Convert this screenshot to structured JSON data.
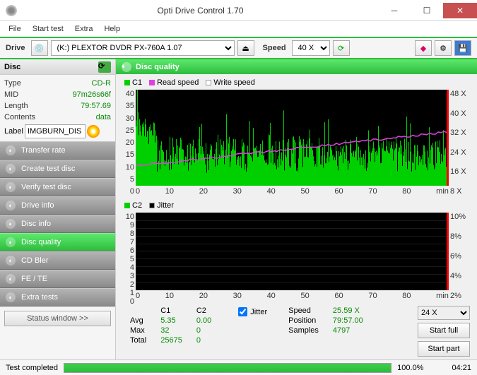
{
  "window": {
    "title": "Opti Drive Control 1.70"
  },
  "menu": [
    "File",
    "Start test",
    "Extra",
    "Help"
  ],
  "toolbar": {
    "drive_label": "Drive",
    "drive_value": "(K:)   PLEXTOR  DVDR   PX-760A 1.07",
    "speed_label": "Speed",
    "speed_value": "40 X"
  },
  "disc": {
    "header": "Disc",
    "type_k": "Type",
    "type_v": "CD-R",
    "mid_k": "MID",
    "mid_v": "97m26s66f",
    "len_k": "Length",
    "len_v": "79:57.69",
    "cont_k": "Contents",
    "cont_v": "data",
    "label_k": "Label",
    "label_v": "IMGBURN_DIS"
  },
  "nav": [
    "Transfer rate",
    "Create test disc",
    "Verify test disc",
    "Drive info",
    "Disc info",
    "Disc quality",
    "CD Bler",
    "FE / TE",
    "Extra tests"
  ],
  "statuswin": "Status window >>",
  "panel": {
    "title": "Disc quality"
  },
  "legend1": {
    "c1": "C1",
    "rs": "Read speed",
    "ws": "Write speed"
  },
  "legend2": {
    "c2": "C2",
    "jit": "Jitter"
  },
  "chart1": {
    "ymax": 40,
    "yticks": [
      "40",
      "35",
      "30",
      "25",
      "20",
      "15",
      "10",
      "5",
      "0"
    ],
    "y2ticks": [
      "48 X",
      "40 X",
      "32 X",
      "24 X",
      "16 X",
      "8 X"
    ],
    "xticks": [
      "0",
      "10",
      "20",
      "30",
      "40",
      "50",
      "60",
      "70",
      "80",
      "min"
    ]
  },
  "chart2": {
    "yticks": [
      "10",
      "9",
      "8",
      "7",
      "6",
      "5",
      "4",
      "3",
      "2",
      "1",
      "0"
    ],
    "y2ticks": [
      "10%",
      "8%",
      "6%",
      "4%",
      "2%"
    ],
    "xticks": [
      "0",
      "10",
      "20",
      "30",
      "40",
      "50",
      "60",
      "70",
      "80",
      "min"
    ]
  },
  "stats": {
    "h_c1": "C1",
    "h_c2": "C2",
    "avg_k": "Avg",
    "avg_c1": "5.35",
    "avg_c2": "0.00",
    "max_k": "Max",
    "max_c1": "32",
    "max_c2": "0",
    "tot_k": "Total",
    "tot_c1": "25675",
    "tot_c2": "0",
    "jitter": "Jitter",
    "speed_k": "Speed",
    "speed_v": "25.59 X",
    "pos_k": "Position",
    "pos_v": "79:57.00",
    "samp_k": "Samples",
    "samp_v": "4797",
    "sel": "24 X",
    "b1": "Start full",
    "b2": "Start part"
  },
  "status": {
    "text": "Test completed",
    "pct": "100.0%",
    "time": "04:21"
  },
  "colors": {
    "green": "#2dbc3e",
    "c1": "#00d000",
    "magenta": "#e040e0"
  }
}
